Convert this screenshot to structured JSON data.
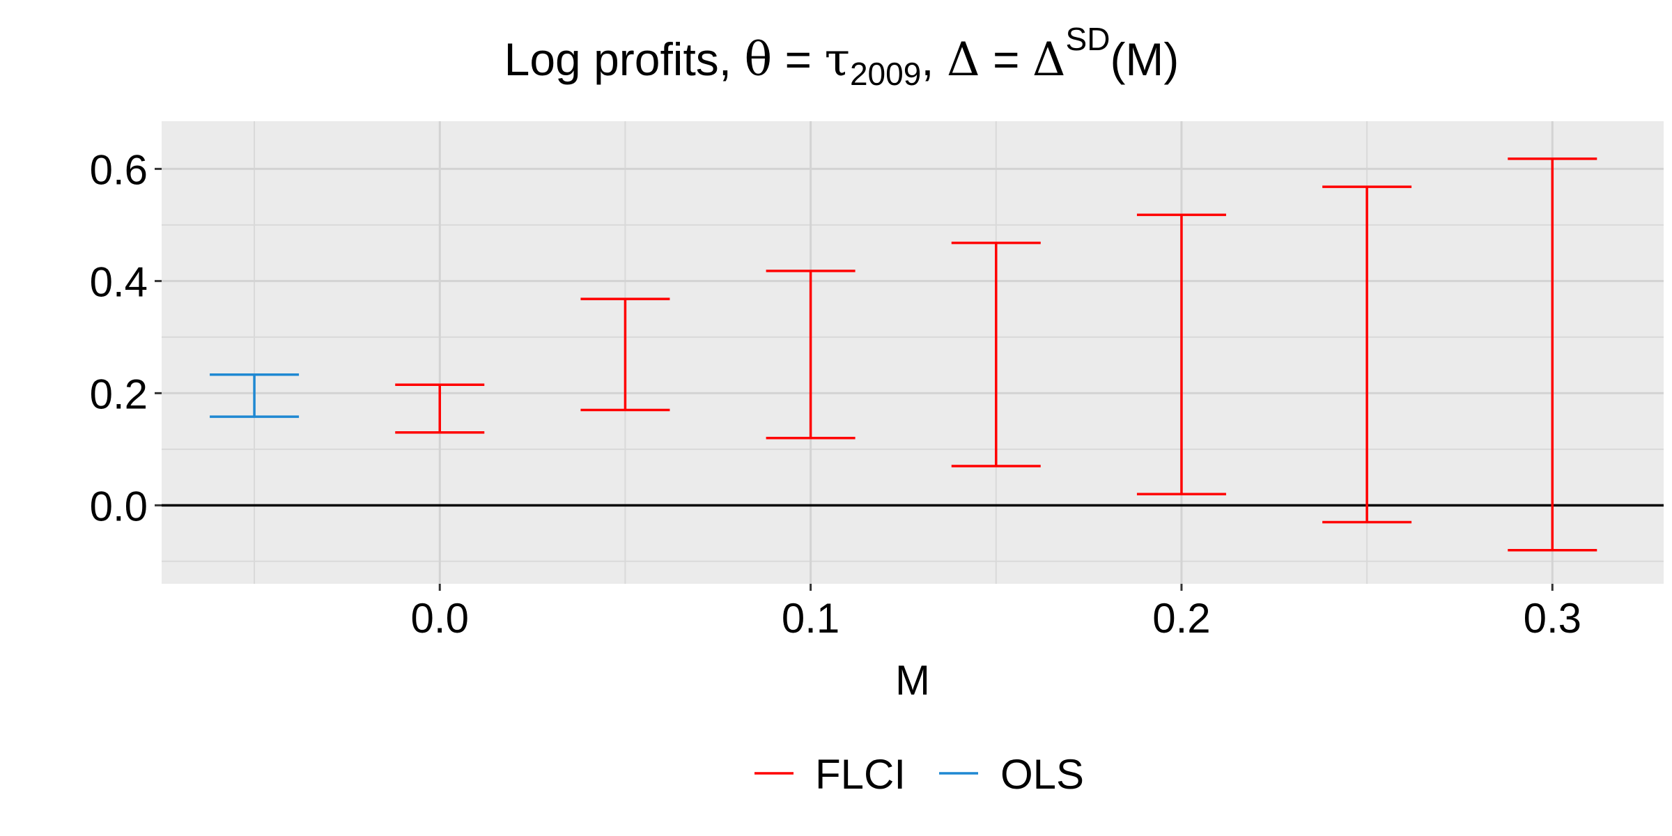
{
  "chart_data": {
    "type": "errorbar",
    "title": {
      "prefix": "Log profits, ",
      "theta": "θ",
      "eq1": " = ",
      "tau": "τ",
      "tau_sub": "2009",
      "sep": ", ",
      "delta": "Δ",
      "eq2": " = ",
      "delta2": "Δ",
      "sup": "SD",
      "suffix": "(M)"
    },
    "xlabel": "M",
    "ylabel": "",
    "xlim": [
      -0.075,
      0.33
    ],
    "ylim": [
      -0.14,
      0.685
    ],
    "x_ticks": [
      0.0,
      0.1,
      0.2,
      0.3
    ],
    "x_tick_labels": [
      "0.0",
      "0.1",
      "0.2",
      "0.3"
    ],
    "x_minor": [
      -0.05,
      0.05,
      0.15,
      0.25
    ],
    "y_ticks": [
      0.0,
      0.2,
      0.4,
      0.6
    ],
    "y_tick_labels": [
      "0.0",
      "0.2",
      "0.4",
      "0.6"
    ],
    "y_minor": [
      -0.1,
      0.1,
      0.3,
      0.5
    ],
    "hline": 0,
    "grid": true,
    "legend_position": "bottom",
    "series": [
      {
        "name": "FLCI",
        "color": "#ff0000",
        "points": [
          {
            "x": 0.0,
            "lo": 0.13,
            "hi": 0.215
          },
          {
            "x": 0.05,
            "lo": 0.17,
            "hi": 0.368
          },
          {
            "x": 0.1,
            "lo": 0.12,
            "hi": 0.418
          },
          {
            "x": 0.15,
            "lo": 0.07,
            "hi": 0.468
          },
          {
            "x": 0.2,
            "lo": 0.02,
            "hi": 0.518
          },
          {
            "x": 0.25,
            "lo": -0.03,
            "hi": 0.568
          },
          {
            "x": 0.3,
            "lo": -0.08,
            "hi": 0.618
          }
        ]
      },
      {
        "name": "OLS",
        "color": "#1f88d2",
        "points": [
          {
            "x": -0.05,
            "lo": 0.158,
            "hi": 0.233
          }
        ]
      }
    ]
  }
}
